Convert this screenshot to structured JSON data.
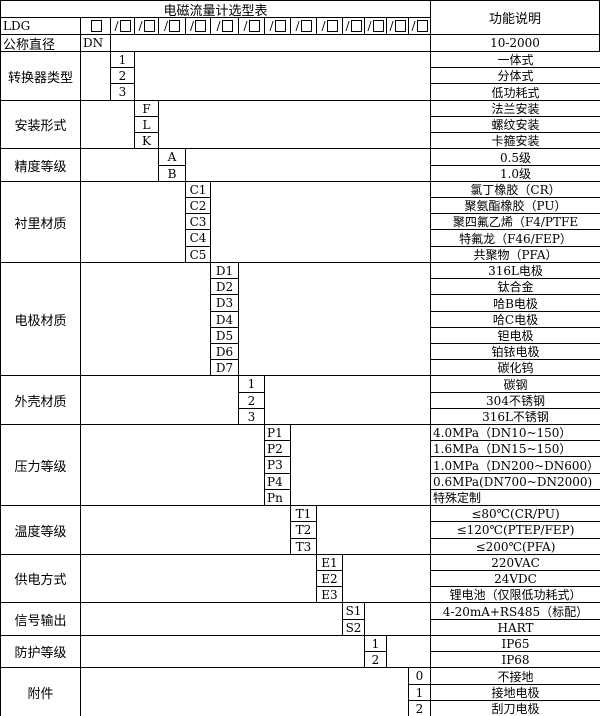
{
  "title": "电磁流量计选型表",
  "function_header": "功能说明",
  "model_prefix": "LDG",
  "slot_separator": "/",
  "nominal": {
    "label": "公称直径",
    "code": "DN",
    "desc": "10-2000"
  },
  "groups": [
    {
      "label": "转换器类型",
      "slot": 0,
      "items": [
        {
          "code": "1",
          "desc": "一体式"
        },
        {
          "code": "2",
          "desc": "分体式"
        },
        {
          "code": "3",
          "desc": "低功耗式"
        }
      ]
    },
    {
      "label": "安装形式",
      "slot": 1,
      "items": [
        {
          "code": "F",
          "desc": "法兰安装"
        },
        {
          "code": "L",
          "desc": "螺纹安装"
        },
        {
          "code": "K",
          "desc": "卡箍安装"
        }
      ]
    },
    {
      "label": "精度等级",
      "slot": 2,
      "items": [
        {
          "code": "A",
          "desc": "0.5级"
        },
        {
          "code": "B",
          "desc": "1.0级"
        }
      ]
    },
    {
      "label": "衬里材质",
      "slot": 3,
      "items": [
        {
          "code": "C1",
          "desc": "氯丁橡胶（CR）"
        },
        {
          "code": "C2",
          "desc": "聚氨酯橡胶（PU）"
        },
        {
          "code": "C3",
          "desc": "聚四氟乙烯（F4/PTFE"
        },
        {
          "code": "C4",
          "desc": "特氟龙（F46/FEP）"
        },
        {
          "code": "C5",
          "desc": "共聚物（PFA）"
        }
      ]
    },
    {
      "label": "电极材质",
      "slot": 4,
      "items": [
        {
          "code": "D1",
          "desc": "316L电极"
        },
        {
          "code": "D2",
          "desc": "钛合金"
        },
        {
          "code": "D3",
          "desc": "哈B电极"
        },
        {
          "code": "D4",
          "desc": "哈C电极"
        },
        {
          "code": "D5",
          "desc": "钽电极"
        },
        {
          "code": "D6",
          "desc": "铂铱电极"
        },
        {
          "code": "D7",
          "desc": "碳化钨"
        }
      ]
    },
    {
      "label": "外壳材质",
      "slot": 5,
      "items": [
        {
          "code": "1",
          "desc": "碳钢"
        },
        {
          "code": "2",
          "desc": "304不锈钢"
        },
        {
          "code": "3",
          "desc": "316L不锈钢"
        }
      ]
    },
    {
      "label": "压力等级",
      "slot": 6,
      "left": true,
      "items": [
        {
          "code": "P1",
          "desc": "4.0MPa（DN10~150）"
        },
        {
          "code": "P2",
          "desc": "1.6MPa（DN15~150）"
        },
        {
          "code": "P3",
          "desc": "1.0MPa（DN200~DN600）"
        },
        {
          "code": "P4",
          "desc": "0.6MPa(DN700~DN2000)"
        },
        {
          "code": "Pn",
          "desc": "特殊定制"
        }
      ]
    },
    {
      "label": "温度等级",
      "slot": 7,
      "items": [
        {
          "code": "T1",
          "desc": "≤80℃(CR/PU)"
        },
        {
          "code": "T2",
          "desc": "≤120℃(PTEP/FEP)"
        },
        {
          "code": "T3",
          "desc": "≤200℃(PFA)"
        }
      ]
    },
    {
      "label": "供电方式",
      "slot": 8,
      "items": [
        {
          "code": "E1",
          "desc": "220VAC"
        },
        {
          "code": "E2",
          "desc": "24VDC"
        },
        {
          "code": "E3",
          "desc": "锂电池（仅限低功耗式）"
        }
      ]
    },
    {
      "label": "信号输出",
      "slot": 9,
      "items": [
        {
          "code": "S1",
          "desc": "4-20mA+RS485（标配）"
        },
        {
          "code": "S2",
          "desc": "HART"
        }
      ]
    },
    {
      "label": "防护等级",
      "slot": 10,
      "items": [
        {
          "code": "1",
          "desc": "IP65"
        },
        {
          "code": "2",
          "desc": "IP68"
        }
      ]
    },
    {
      "label": "附件",
      "slot": 12,
      "items": [
        {
          "code": "0",
          "desc": "不接地"
        },
        {
          "code": "1",
          "desc": "接地电极"
        },
        {
          "code": "2",
          "desc": "刮刀电极"
        }
      ]
    }
  ]
}
